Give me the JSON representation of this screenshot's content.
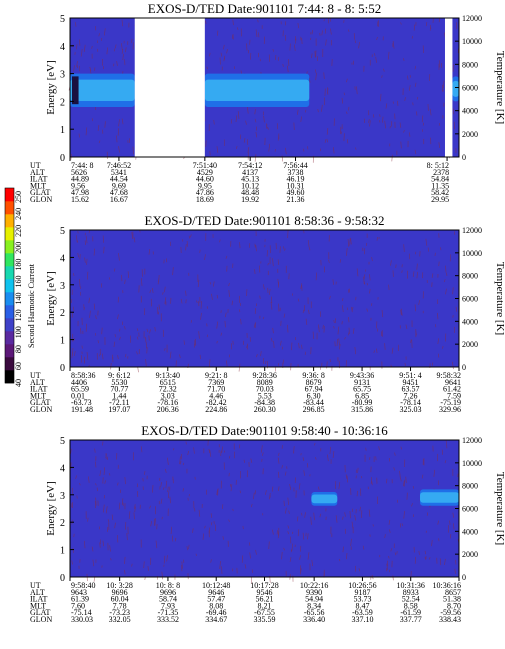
{
  "colorbar": {
    "label": "Second Harmonic Current",
    "ticks": [
      "40",
      "60",
      "80",
      "100",
      "120",
      "140",
      "160",
      "180",
      "200",
      "220",
      "240",
      "250"
    ],
    "colors": [
      "#000000",
      "#3a0a3e",
      "#5c1878",
      "#5a2aa0",
      "#3f41c8",
      "#2a5fe6",
      "#1a8df0",
      "#10c2ee",
      "#18d8b0",
      "#30e660",
      "#88f020",
      "#e6f000",
      "#ffb000",
      "#ff5000",
      "#ff0000"
    ]
  },
  "colors": {
    "background": "#3a37c8",
    "band_outer": "#1f6fe8",
    "band_inner": "#35aaf2",
    "noise": "#8a2a3a",
    "gap": "#ffffff"
  },
  "chart_data": [
    {
      "type": "heatmap",
      "title": "EXOS-D/TED   Date:901101  7:44: 8 - 8: 5:52",
      "ylabel": "Energy [eV]",
      "ylabel_right": "Temperature [K]",
      "ylim": [
        0,
        5
      ],
      "yticks": [
        "0",
        "1",
        "2",
        "3",
        "4",
        "5"
      ],
      "ylim_right": [
        0,
        12000
      ],
      "yticks_right": [
        "0",
        "2000",
        "4000",
        "6000",
        "8000",
        "10000",
        "12000"
      ],
      "time_range": [
        "7:44:08",
        "8:05:52"
      ],
      "gaps": [
        [
          "7:47:45",
          "7:51:40"
        ],
        [
          "8:05:05",
          "8:05:30"
        ]
      ],
      "bands": [
        {
          "from": "7:44:08",
          "to": "7:47:45",
          "low": 1.8,
          "high": 3.0
        },
        {
          "from": "7:51:40",
          "to": "7:57:30",
          "low": 1.8,
          "high": 3.0
        },
        {
          "from": "8:05:30",
          "to": "8:05:52",
          "low": 2.0,
          "high": 2.9
        }
      ],
      "hot_spot": {
        "from": "7:44:08",
        "to": "7:44:30",
        "low": 1.9,
        "high": 2.9
      },
      "ephemeris": {
        "row_labels": [
          "UT",
          "ALT",
          "ILAT",
          "MLT",
          "GLAT",
          "GLON"
        ],
        "columns": [
          [
            "7:44: 8",
            "5626",
            "44.89",
            "9.56",
            "47.98",
            "15.62"
          ],
          [
            "7:46:52",
            "5341",
            "44.54",
            "9.69",
            "47.68",
            "16.67"
          ],
          [
            "7:51:40",
            "4529",
            "44.60",
            "9.95",
            "47.86",
            "18.69"
          ],
          [
            "7:54:12",
            "4137",
            "45.13",
            "10.12",
            "48.48",
            "19.92"
          ],
          [
            "7:56:44",
            "3738",
            "46.19",
            "10.31",
            "49.60",
            "21.36"
          ],
          [
            "8: 5:12",
            "2378",
            "54.84",
            "11.35",
            "58.42",
            "29.95"
          ]
        ]
      }
    },
    {
      "type": "heatmap",
      "title": "EXOS-D/TED   Date:901101  8:58:36 - 9:58:32",
      "ylabel": "Energy [eV]",
      "ylabel_right": "Temperature [K]",
      "ylim": [
        0,
        5
      ],
      "yticks": [
        "0",
        "1",
        "2",
        "3",
        "4",
        "5"
      ],
      "ylim_right": [
        0,
        12000
      ],
      "yticks_right": [
        "0",
        "2000",
        "4000",
        "6000",
        "8000",
        "10000",
        "12000"
      ],
      "time_range": [
        "8:58:36",
        "9:58:32"
      ],
      "gaps": [],
      "bands": [],
      "ephemeris": {
        "row_labels": [
          "UT",
          "ALT",
          "ILAT",
          "MLT",
          "GLAT",
          "GLON"
        ],
        "columns": [
          [
            "8:58:36",
            "4406",
            "65.59",
            "0.01",
            "-63.73",
            "191.48"
          ],
          [
            "9: 6:12",
            "5530",
            "70.77",
            "1.44",
            "-72.11",
            "197.07"
          ],
          [
            "9:13:40",
            "6515",
            "72.32",
            "3.03",
            "-78.16",
            "206.36"
          ],
          [
            "9:21: 8",
            "7369",
            "71.70",
            "4.46",
            "-82.42",
            "224.86"
          ],
          [
            "9:28:36",
            "8089",
            "70.03",
            "5.53",
            "-84.38",
            "260.30"
          ],
          [
            "9:36: 8",
            "8679",
            "67.94",
            "6.30",
            "-83.44",
            "296.85"
          ],
          [
            "9:43:36",
            "9131",
            "65.75",
            "6.85",
            "-80.99",
            "315.86"
          ],
          [
            "9:51: 4",
            "9451",
            "63.57",
            "7.26",
            "-78.14",
            "325.03"
          ],
          [
            "9:58:32",
            "9641",
            "61.42",
            "7.59",
            "-75.19",
            "329.96"
          ]
        ]
      }
    },
    {
      "type": "heatmap",
      "title": "EXOS-D/TED   Date:901101  9:58:40 - 10:36:16",
      "ylabel": "Energy [eV]",
      "ylabel_right": "Temperature [K]",
      "ylim": [
        0,
        5
      ],
      "yticks": [
        "0",
        "1",
        "2",
        "3",
        "4",
        "5"
      ],
      "ylim_right": [
        0,
        12000
      ],
      "yticks_right": [
        "0",
        "2000",
        "4000",
        "6000",
        "8000",
        "10000",
        "12000"
      ],
      "time_range": [
        "9:58:40",
        "10:36:16"
      ],
      "gaps": [],
      "bands": [
        {
          "from": "10:22:00",
          "to": "10:24:30",
          "low": 2.6,
          "high": 3.1
        },
        {
          "from": "10:32:30",
          "to": "10:36:16",
          "low": 2.6,
          "high": 3.2
        }
      ],
      "ephemeris": {
        "row_labels": [
          "UT",
          "ALT",
          "ILAT",
          "MLT",
          "GLAT",
          "GLON"
        ],
        "columns": [
          [
            "9:58:40",
            "9643",
            "61.39",
            "7.60",
            "-75.14",
            "330.03"
          ],
          [
            "10: 3:28",
            "9696",
            "60.04",
            "7.78",
            "-73.23",
            "332.05"
          ],
          [
            "10: 8: 8",
            "9696",
            "58.74",
            "7.93",
            "-71.35",
            "333.52"
          ],
          [
            "10:12:48",
            "9646",
            "57.47",
            "8.08",
            "-69.46",
            "334.67"
          ],
          [
            "10:17:28",
            "9546",
            "56.21",
            "8.21",
            "-67.55",
            "335.59"
          ],
          [
            "10:22:16",
            "9390",
            "54.94",
            "8.34",
            "-65.56",
            "336.40"
          ],
          [
            "10:26:56",
            "9187",
            "53.73",
            "8.47",
            "-63.59",
            "337.10"
          ],
          [
            "10:31:36",
            "8933",
            "52.54",
            "8.58",
            "-61.59",
            "337.77"
          ],
          [
            "10:36:16",
            "8657",
            "51.38",
            "8.70",
            "-59.56",
            "338.43"
          ]
        ]
      }
    }
  ]
}
